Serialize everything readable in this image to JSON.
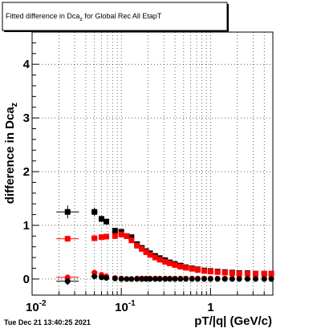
{
  "chart_data": {
    "type": "scatter",
    "title": "Fitted difference in Dca_z for Global Rec All EtapT",
    "title_text": "Fitted difference in Dca",
    "title_sub": "z",
    "title_rest": " for Global Rec All EtapT",
    "xlabel": "pT/|q| (GeV/c)",
    "ylabel_main": "difference in Dca",
    "ylabel_sub": "z",
    "x_scale": "log",
    "xlim": [
      0.01,
      5.0
    ],
    "ylim": [
      -0.3,
      4.6
    ],
    "x_ticks": [
      0.01,
      0.1,
      1
    ],
    "x_tick_labels": [
      "10",
      "10",
      "1"
    ],
    "x_tick_exponents": [
      "-2",
      "-1",
      ""
    ],
    "y_ticks": [
      0,
      1,
      2,
      3,
      4
    ],
    "y_tick_labels": [
      "0",
      "1",
      "2",
      "3",
      "4"
    ],
    "grid": true,
    "timestamp": "Tue Dec 21 13:40:25 2021",
    "series": [
      {
        "marker": "square",
        "color": "#000000",
        "points": [
          [
            0.025,
            1.25
          ],
          [
            0.05,
            1.25
          ],
          [
            0.06,
            1.12
          ],
          [
            0.068,
            1.07
          ],
          [
            0.085,
            0.9
          ],
          [
            0.1,
            0.88
          ],
          [
            0.115,
            0.8
          ],
          [
            0.13,
            0.78
          ],
          [
            0.15,
            0.65
          ],
          [
            0.17,
            0.58
          ],
          [
            0.19,
            0.52
          ],
          [
            0.21,
            0.48
          ],
          [
            0.24,
            0.43
          ],
          [
            0.27,
            0.39
          ],
          [
            0.31,
            0.35
          ],
          [
            0.35,
            0.31
          ],
          [
            0.4,
            0.28
          ],
          [
            0.46,
            0.25
          ],
          [
            0.53,
            0.22
          ],
          [
            0.62,
            0.2
          ],
          [
            0.72,
            0.18
          ],
          [
            0.85,
            0.16
          ],
          [
            1.0,
            0.15
          ],
          [
            1.2,
            0.14
          ],
          [
            1.45,
            0.13
          ],
          [
            1.75,
            0.12
          ],
          [
            2.1,
            0.11
          ],
          [
            2.6,
            0.11
          ],
          [
            3.2,
            0.1
          ],
          [
            4.0,
            0.1
          ],
          [
            4.8,
            0.1
          ]
        ],
        "errors": [
          0.12,
          0.08,
          0.06,
          0.05,
          0.04,
          0.04,
          0.03,
          0.03,
          0.03,
          0.02,
          0.02,
          0.02,
          0.02,
          0.02,
          0.02,
          0.02,
          0.02,
          0.02,
          0.02,
          0.02,
          0.02,
          0.02,
          0.02,
          0.02,
          0.02,
          0.02,
          0.02,
          0.02,
          0.02,
          0.02,
          0.02
        ],
        "x_half_widths": [
          0.018,
          0.0
        ]
      },
      {
        "marker": "square",
        "color": "#ff0000",
        "points": [
          [
            0.025,
            0.75
          ],
          [
            0.05,
            0.76
          ],
          [
            0.06,
            0.78
          ],
          [
            0.068,
            0.79
          ],
          [
            0.085,
            0.8
          ],
          [
            0.1,
            0.83
          ],
          [
            0.115,
            0.8
          ],
          [
            0.13,
            0.72
          ],
          [
            0.15,
            0.62
          ],
          [
            0.17,
            0.56
          ],
          [
            0.19,
            0.5
          ],
          [
            0.21,
            0.45
          ],
          [
            0.24,
            0.4
          ],
          [
            0.27,
            0.36
          ],
          [
            0.31,
            0.32
          ],
          [
            0.35,
            0.29
          ],
          [
            0.4,
            0.26
          ],
          [
            0.46,
            0.23
          ],
          [
            0.53,
            0.21
          ],
          [
            0.62,
            0.19
          ],
          [
            0.72,
            0.17
          ],
          [
            0.85,
            0.15
          ],
          [
            1.0,
            0.14
          ],
          [
            1.2,
            0.13
          ],
          [
            1.45,
            0.12
          ],
          [
            1.75,
            0.11
          ],
          [
            2.1,
            0.1
          ],
          [
            2.6,
            0.1
          ],
          [
            3.2,
            0.1
          ],
          [
            4.0,
            0.1
          ],
          [
            4.8,
            0.1
          ]
        ],
        "errors": [
          0.05,
          0.04,
          0.04,
          0.03,
          0.03,
          0.03,
          0.03,
          0.02,
          0.02,
          0.02,
          0.02,
          0.02,
          0.02,
          0.02,
          0.02,
          0.02,
          0.02,
          0.02,
          0.02,
          0.02,
          0.02,
          0.02,
          0.02,
          0.02,
          0.02,
          0.02,
          0.02,
          0.02,
          0.02,
          0.02,
          0.02
        ]
      },
      {
        "marker": "circle",
        "color": "#ff0000",
        "points": [
          [
            0.025,
            0.03
          ],
          [
            0.05,
            0.12
          ],
          [
            0.06,
            0.08
          ],
          [
            0.068,
            0.05
          ],
          [
            0.085,
            0.02
          ],
          [
            0.1,
            0.01
          ],
          [
            0.115,
            0.0
          ],
          [
            0.13,
            0.0
          ],
          [
            0.15,
            0.01
          ],
          [
            0.17,
            0.01
          ],
          [
            0.19,
            0.01
          ],
          [
            0.21,
            0.01
          ],
          [
            0.24,
            0.01
          ],
          [
            0.27,
            0.01
          ],
          [
            0.31,
            0.01
          ],
          [
            0.35,
            0.01
          ],
          [
            0.4,
            0.01
          ],
          [
            0.46,
            0.01
          ],
          [
            0.53,
            0.01
          ],
          [
            0.62,
            0.01
          ],
          [
            0.72,
            0.01
          ],
          [
            0.85,
            0.01
          ],
          [
            1.0,
            0.01
          ],
          [
            1.2,
            0.01
          ],
          [
            1.45,
            0.01
          ],
          [
            1.75,
            0.01
          ],
          [
            2.1,
            0.01
          ],
          [
            2.6,
            0.01
          ],
          [
            3.2,
            0.01
          ],
          [
            4.0,
            0.01
          ],
          [
            4.8,
            0.01
          ]
        ]
      },
      {
        "marker": "circle",
        "color": "#000000",
        "points": [
          [
            0.025,
            -0.04
          ],
          [
            0.05,
            0.05
          ],
          [
            0.06,
            0.03
          ],
          [
            0.068,
            0.02
          ],
          [
            0.085,
            0.01
          ],
          [
            0.1,
            0.0
          ],
          [
            0.115,
            0.0
          ],
          [
            0.13,
            0.0
          ],
          [
            0.15,
            0.0
          ],
          [
            0.17,
            0.0
          ],
          [
            0.19,
            0.0
          ],
          [
            0.21,
            0.0
          ],
          [
            0.24,
            0.0
          ],
          [
            0.27,
            0.0
          ],
          [
            0.31,
            0.0
          ],
          [
            0.35,
            0.0
          ],
          [
            0.4,
            0.0
          ],
          [
            0.46,
            0.0
          ],
          [
            0.53,
            0.0
          ],
          [
            0.62,
            0.0
          ],
          [
            0.72,
            0.0
          ],
          [
            0.85,
            0.0
          ],
          [
            1.0,
            0.0
          ],
          [
            1.2,
            0.0
          ],
          [
            1.45,
            0.0
          ],
          [
            1.75,
            0.0
          ],
          [
            2.1,
            0.0
          ],
          [
            2.6,
            0.0
          ],
          [
            3.2,
            0.0
          ],
          [
            4.0,
            0.0
          ],
          [
            4.8,
            0.0
          ]
        ]
      }
    ]
  }
}
